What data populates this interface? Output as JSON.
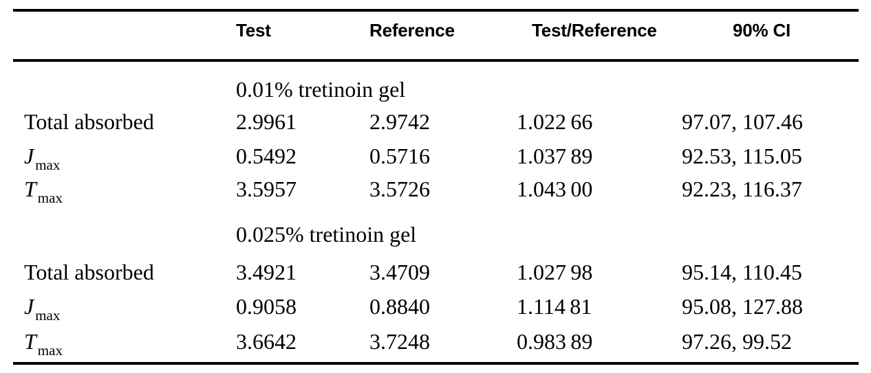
{
  "table": {
    "headers": {
      "test": "Test",
      "reference": "Reference",
      "ratio": "Test/Reference",
      "ci": "90% CI"
    },
    "sections": [
      {
        "title": "0.01% tretinoin gel",
        "rows": [
          {
            "label": "Total absorbed",
            "sub": "",
            "test": "2.9961",
            "reference": "2.9742",
            "ratio": "1.022 66",
            "ci": "97.07, 107.46"
          },
          {
            "label": "J",
            "sub": "max",
            "test": "0.5492",
            "reference": "0.5716",
            "ratio": "1.037 89",
            "ci": "92.53, 115.05"
          },
          {
            "label": "T",
            "sub": "max",
            "test": "3.5957",
            "reference": "3.5726",
            "ratio": "1.043 00",
            "ci": "92.23, 116.37"
          }
        ]
      },
      {
        "title": "0.025% tretinoin gel",
        "rows": [
          {
            "label": "Total absorbed",
            "sub": "",
            "test": "3.4921",
            "reference": "3.4709",
            "ratio": "1.027 98",
            "ci": "95.14, 110.45"
          },
          {
            "label": "J",
            "sub": "max",
            "test": "0.9058",
            "reference": "0.8840",
            "ratio": "1.114 81",
            "ci": "95.08, 127.88"
          },
          {
            "label": "T",
            "sub": "max",
            "test": "3.6642",
            "reference": "3.7248",
            "ratio": "0.983 89",
            "ci": "97.26, 99.52"
          }
        ]
      }
    ]
  }
}
